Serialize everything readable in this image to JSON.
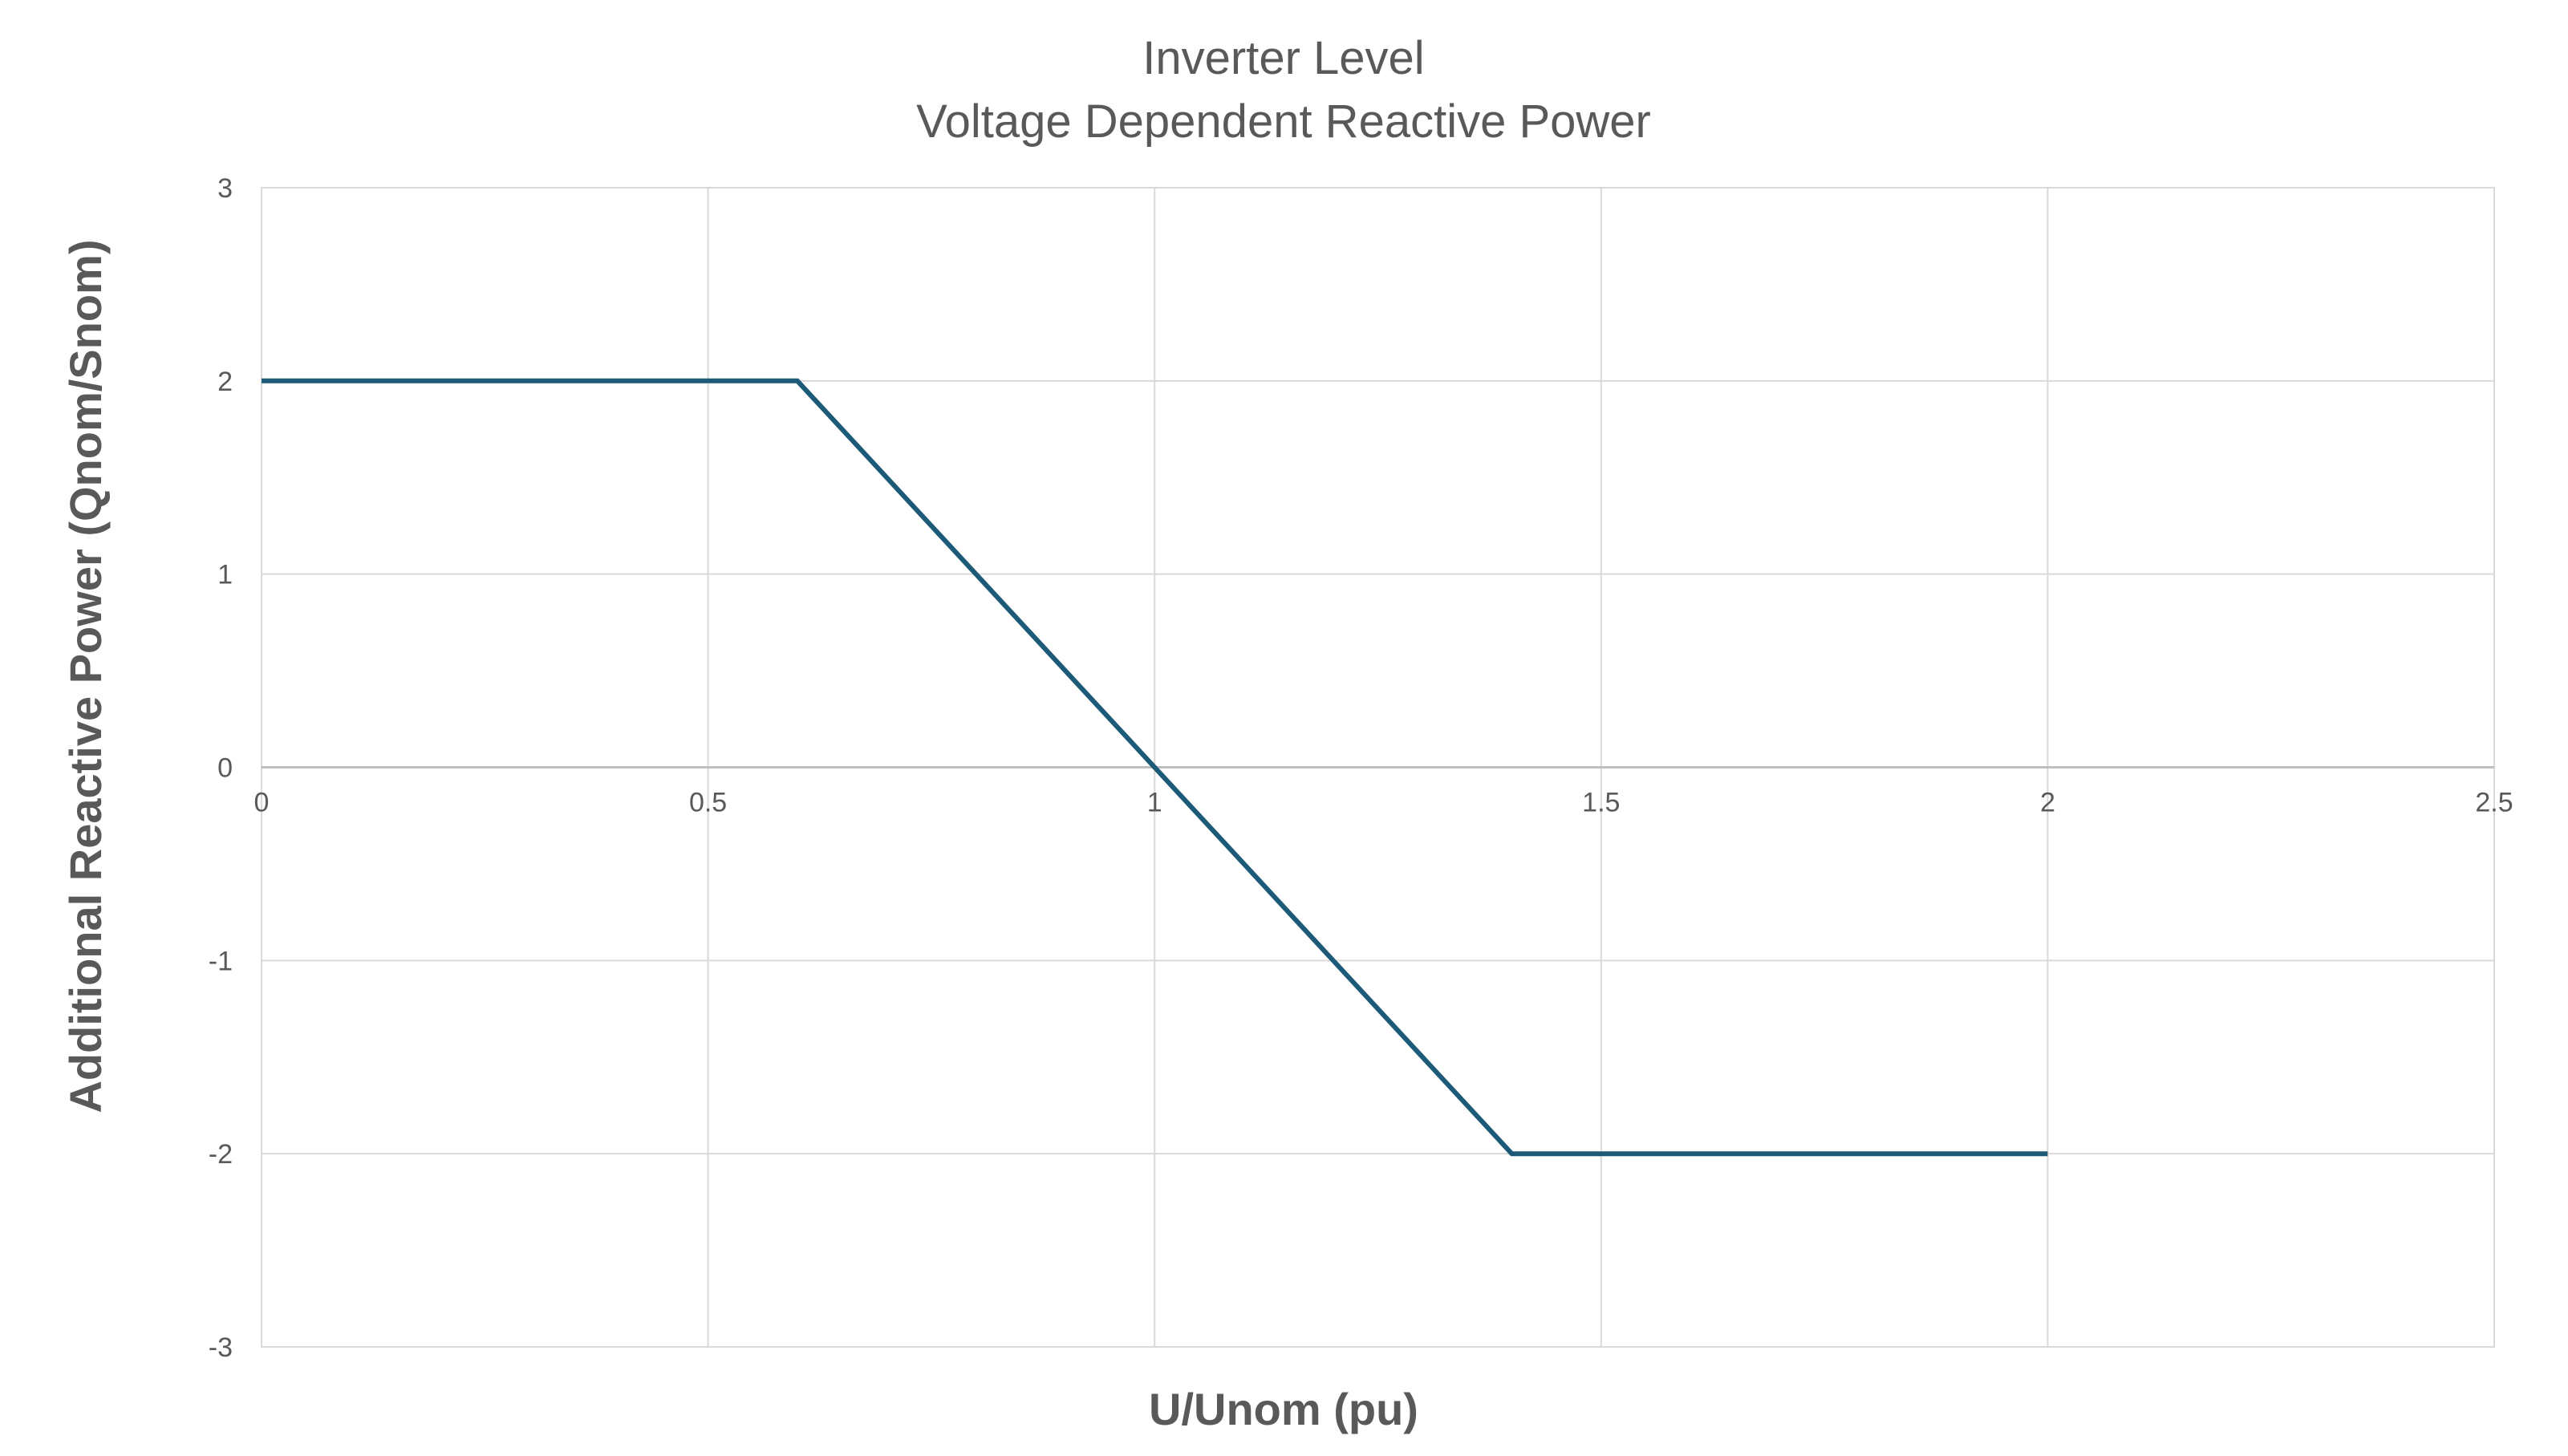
{
  "chart_data": {
    "type": "line",
    "title": [
      "Inverter Level",
      "Voltage Dependent Reactive Power"
    ],
    "xlabel": "U/Unom (pu)",
    "ylabel": "Additional Reactive Power (Qnom/Snom)",
    "xlim": [
      0,
      2.5
    ],
    "ylim": [
      -3,
      3
    ],
    "x_ticks": [
      0,
      0.5,
      1,
      1.5,
      2,
      2.5
    ],
    "x_tick_labels": [
      "0",
      "0.5",
      "1",
      "1.5",
      "2",
      "2.5"
    ],
    "y_ticks": [
      3,
      2,
      1,
      0,
      -1,
      -2,
      -3
    ],
    "y_tick_labels": [
      "3",
      "2",
      "1",
      "0",
      "-1",
      "-2",
      "-3"
    ],
    "grid": true,
    "legend": "none",
    "series": [
      {
        "color": "#1c5a78",
        "points": [
          [
            0,
            2
          ],
          [
            0.6,
            2
          ],
          [
            1.4,
            -2
          ],
          [
            2,
            -2
          ]
        ]
      }
    ]
  }
}
